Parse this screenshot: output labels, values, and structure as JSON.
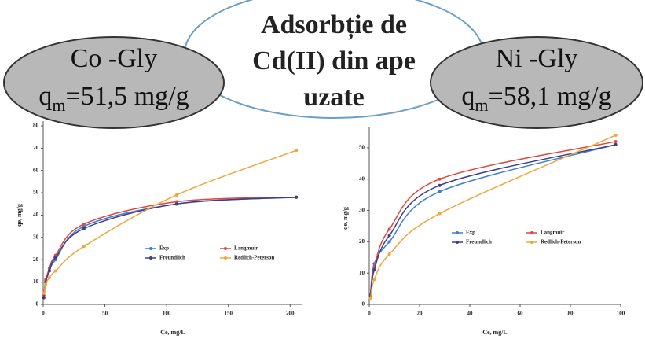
{
  "labels": {
    "left_name": "Co -Gly",
    "left_q": "q",
    "left_sub": "m",
    "left_value": "=51,5 mg/g",
    "center": [
      "Adsorbție de",
      "Cd(II) din ape",
      "uzate"
    ],
    "right_name": "Ni -Gly",
    "right_q": "q",
    "right_sub": "m",
    "right_value": "=58,1 mg/g"
  },
  "chart_data": [
    {
      "type": "line",
      "x_label": "Ce, mg/L",
      "y_label": "qe, mg/g",
      "x": [
        0.5,
        2,
        5,
        10,
        33,
        108,
        205
      ],
      "xlim": [
        0,
        210
      ],
      "xticks": [
        0,
        50,
        100,
        150,
        200
      ],
      "ylim": [
        0,
        80
      ],
      "yticks": [
        0,
        10,
        20,
        30,
        40,
        50,
        60,
        70,
        80
      ],
      "series": [
        {
          "name": "Exp",
          "color": "#3a7fd0",
          "values": [
            3,
            10,
            15,
            20,
            35,
            45,
            48
          ]
        },
        {
          "name": "Langmuir",
          "color": "#e0483c",
          "values": [
            4,
            11,
            16,
            22,
            36,
            46,
            48
          ]
        },
        {
          "name": "Freundlich",
          "color": "#3b3f8c",
          "values": [
            3,
            10,
            15,
            21,
            34,
            45,
            48
          ]
        },
        {
          "name": "Redlich-Peterson",
          "color": "#f0a63a",
          "values": [
            5,
            9,
            12,
            15,
            26,
            49,
            69
          ]
        }
      ]
    },
    {
      "type": "line",
      "x_label": "Ce, mg/L",
      "y_label": "qe, mg/g",
      "x": [
        0.5,
        2,
        8,
        28,
        98
      ],
      "xlim": [
        0,
        100
      ],
      "xticks": [
        0,
        20,
        40,
        60,
        80,
        100
      ],
      "ylim": [
        0,
        55
      ],
      "yticks": [
        0,
        10,
        20,
        30,
        40,
        50
      ],
      "series": [
        {
          "name": "Exp",
          "color": "#3a7fd0",
          "values": [
            3,
            13,
            20,
            36,
            51
          ]
        },
        {
          "name": "Langmuir",
          "color": "#e0483c",
          "values": [
            3,
            12,
            24,
            40,
            52
          ]
        },
        {
          "name": "Freundlich",
          "color": "#3b3f8c",
          "values": [
            3,
            11,
            22,
            38,
            51
          ]
        },
        {
          "name": "Redlich-Peterson",
          "color": "#f0a63a",
          "values": [
            2,
            8,
            16,
            29,
            54
          ]
        }
      ]
    }
  ]
}
